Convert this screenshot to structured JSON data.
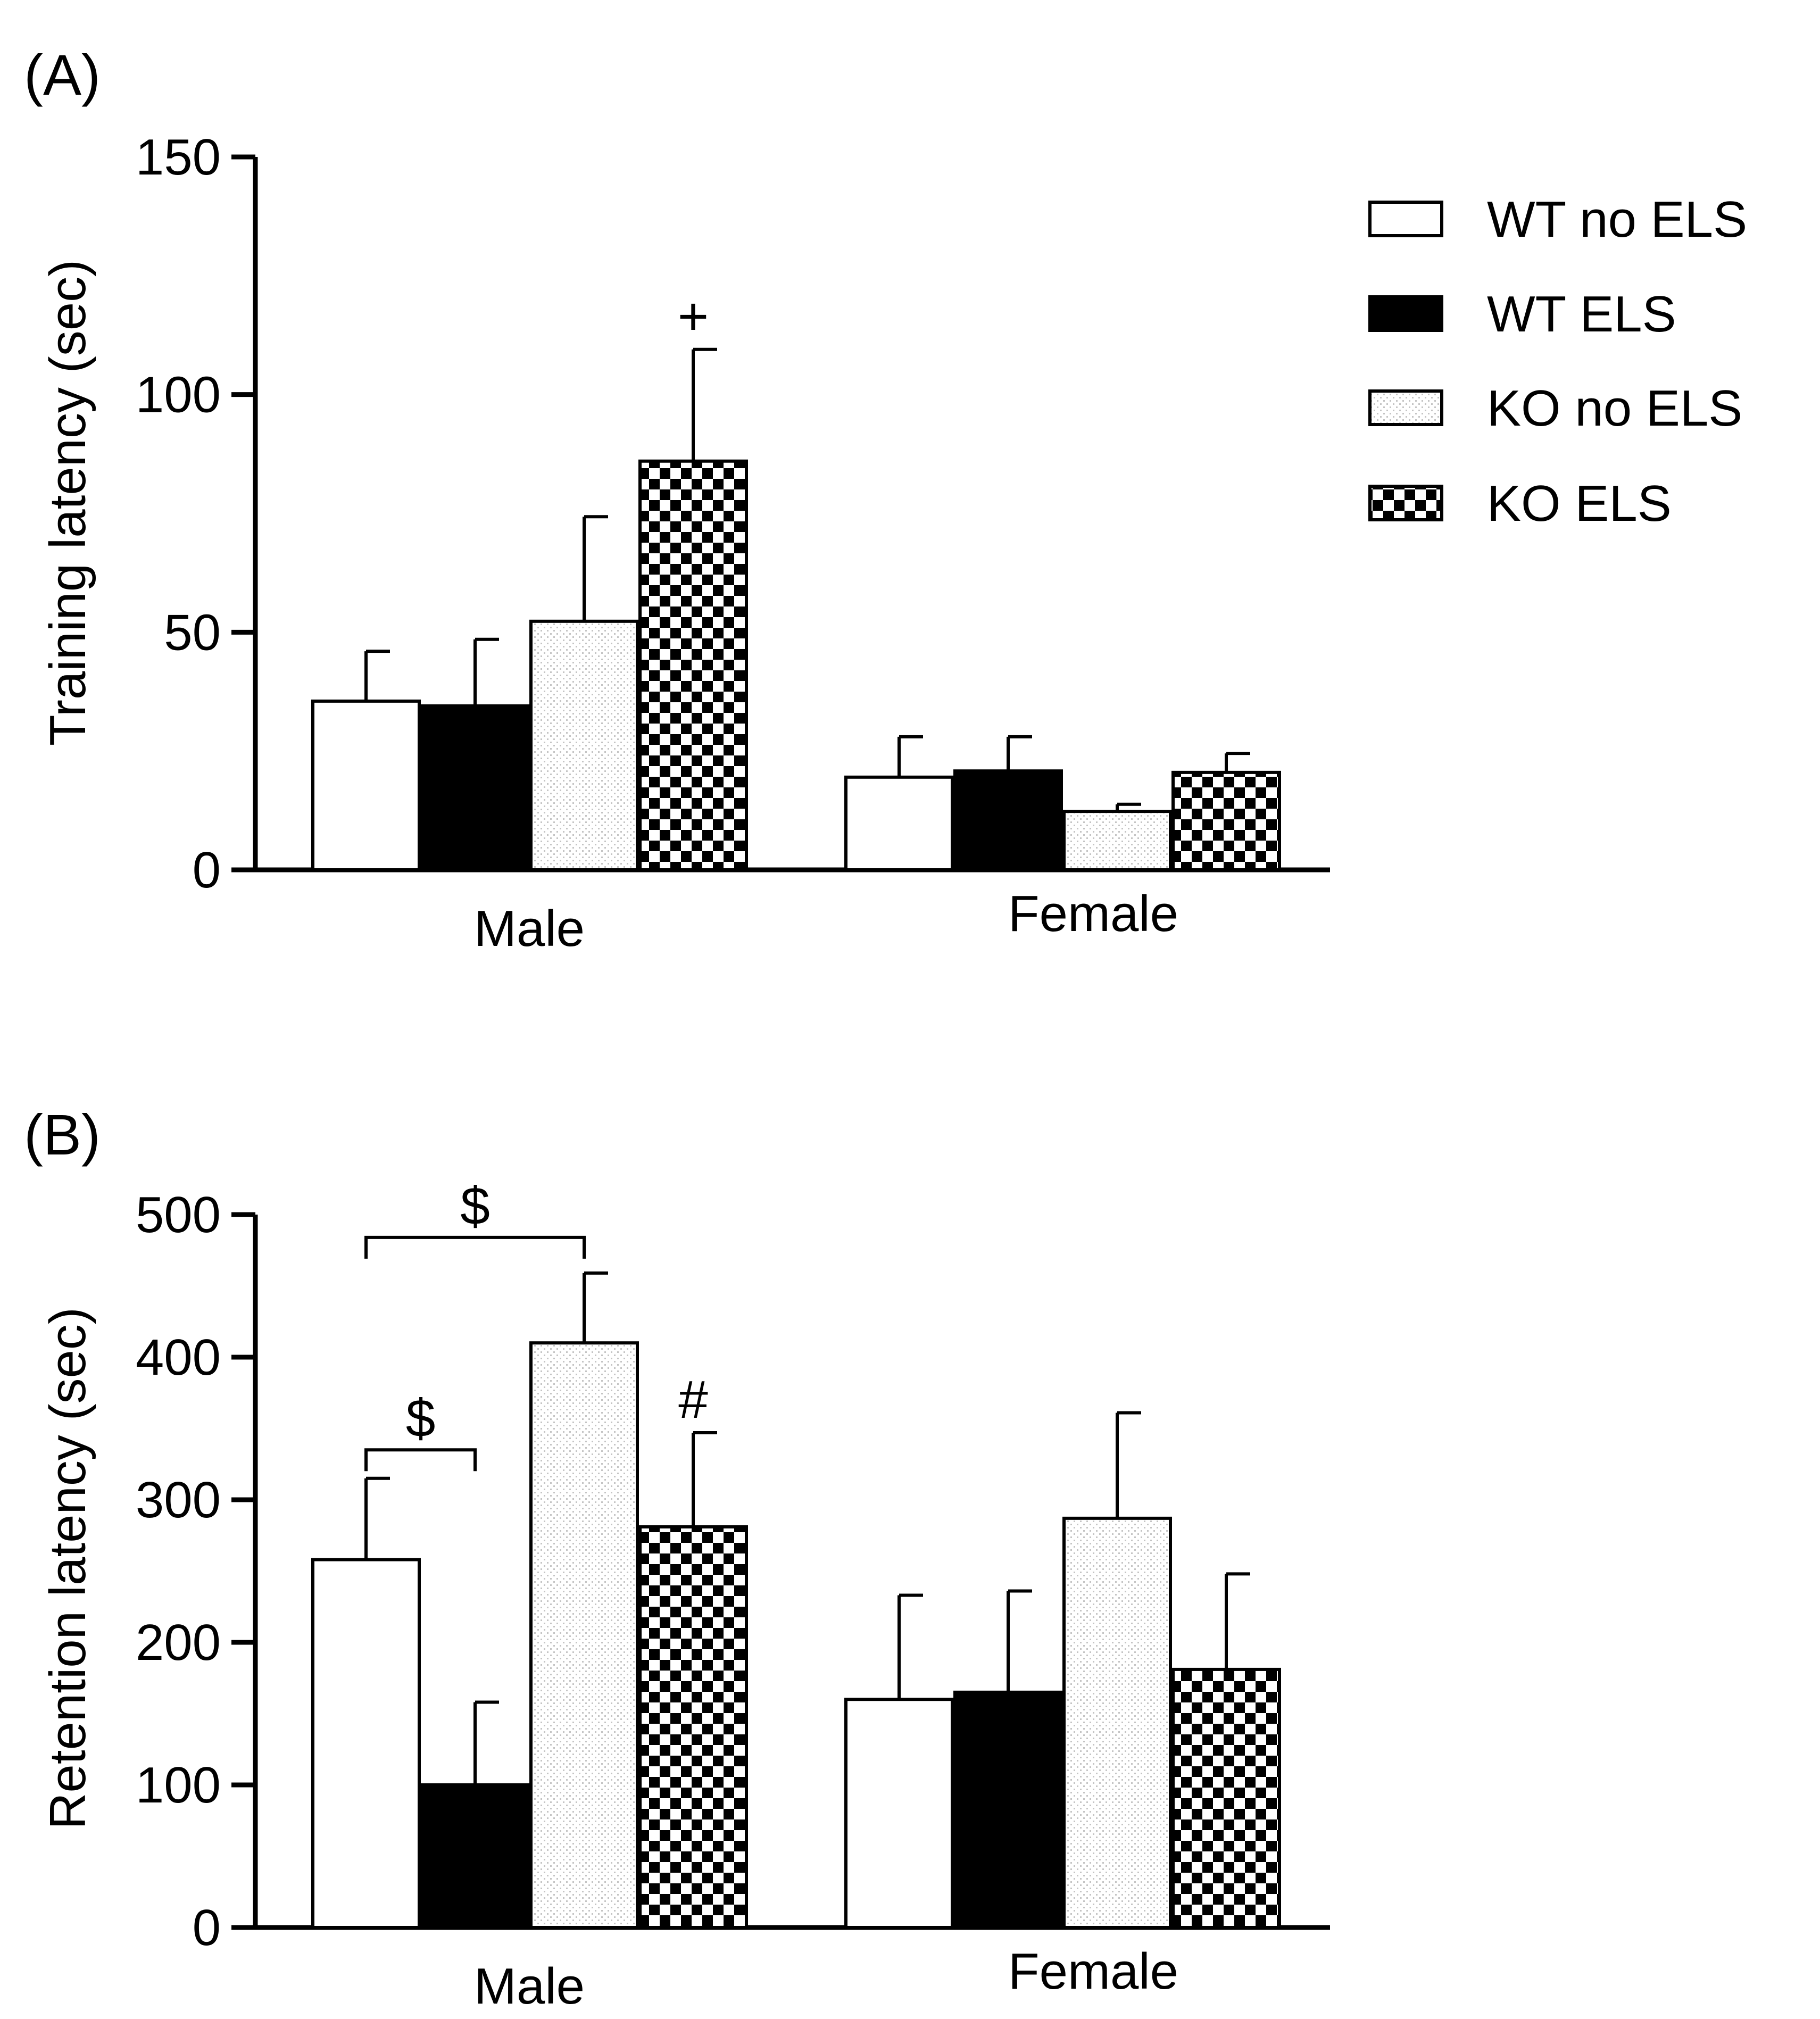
{
  "legend": [
    {
      "name": "WT no ELS",
      "pattern": "white"
    },
    {
      "name": "WT ELS",
      "pattern": "black"
    },
    {
      "name": "KO no ELS",
      "pattern": "dots"
    },
    {
      "name": "KO ELS",
      "pattern": "checker"
    }
  ],
  "colors": {
    "bar_stroke": "#000000",
    "fill_white": "#ffffff",
    "fill_black": "#000000",
    "dot_color": "#b8b8b8"
  },
  "chart_data": [
    {
      "type": "bar",
      "panel_label": "(A)",
      "title": "",
      "xlabel": "",
      "ylabel": "Training latency (sec)",
      "ylim": [
        0,
        150
      ],
      "yticks": [
        0,
        50,
        100,
        150
      ],
      "categories": [
        "Male",
        "Female"
      ],
      "series": [
        {
          "name": "WT no ELS",
          "values": [
            35.5,
            19.5
          ],
          "errors": [
            10.5,
            8.5
          ]
        },
        {
          "name": "WT ELS",
          "values": [
            34.5,
            20.8
          ],
          "errors": [
            14.0,
            7.2
          ]
        },
        {
          "name": "KO no ELS",
          "values": [
            52.3,
            12.3
          ],
          "errors": [
            22.0,
            1.5
          ]
        },
        {
          "name": "KO ELS",
          "values": [
            86.0,
            20.5
          ],
          "errors": [
            23.5,
            4.0
          ]
        }
      ],
      "annotations": [
        {
          "text": "+",
          "category": "Male",
          "series": "KO ELS"
        }
      ],
      "grid": false,
      "legend_position": "top-right"
    },
    {
      "type": "bar",
      "panel_label": "(B)",
      "title": "",
      "xlabel": "",
      "ylabel": "Retention latency (sec)",
      "ylim": [
        0,
        500
      ],
      "yticks": [
        0,
        100,
        200,
        300,
        400,
        500
      ],
      "categories": [
        "Male",
        "Female"
      ],
      "series": [
        {
          "name": "WT no ELS",
          "values": [
            258,
            160
          ],
          "errors": [
            57,
            73
          ]
        },
        {
          "name": "WT ELS",
          "values": [
            100,
            165
          ],
          "errors": [
            58,
            71
          ]
        },
        {
          "name": "KO no ELS",
          "values": [
            410,
            287
          ],
          "errors": [
            49,
            74
          ]
        },
        {
          "name": "KO ELS",
          "values": [
            281,
            181
          ],
          "errors": [
            66,
            67
          ]
        }
      ],
      "annotations": [
        {
          "text": "#",
          "category": "Male",
          "series": "KO ELS"
        }
      ],
      "brackets": [
        {
          "text": "$",
          "category": "Male",
          "from_series": "WT no ELS",
          "to_series": "WT ELS",
          "y": 335
        },
        {
          "text": "$",
          "category": "Male",
          "from_series": "WT no ELS",
          "to_series": "KO no ELS",
          "y": 484
        }
      ],
      "grid": false,
      "legend_position": "none"
    }
  ]
}
